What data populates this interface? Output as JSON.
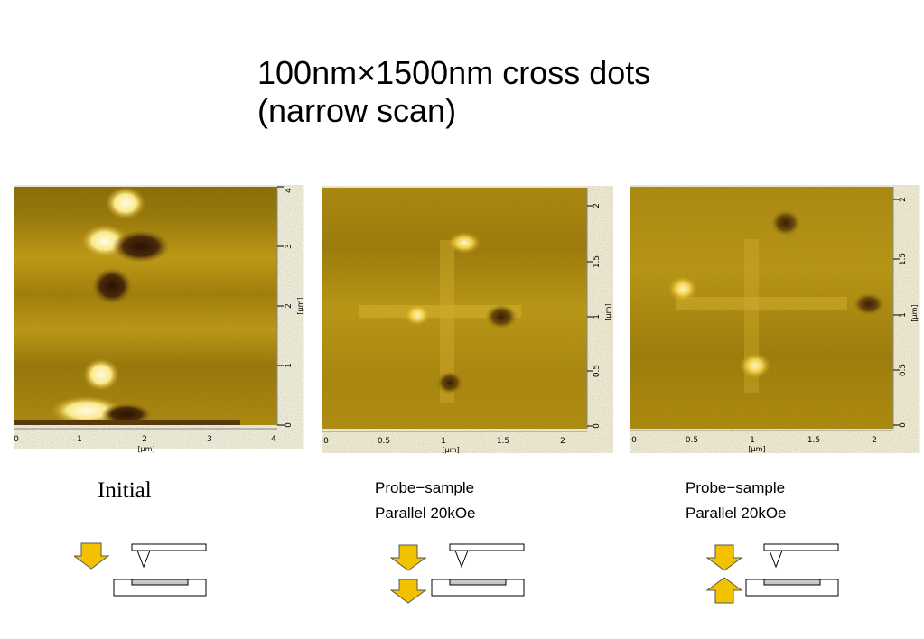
{
  "title": {
    "line1": "100nm×1500nm cross dots",
    "line2": "(narrow scan)"
  },
  "panels": [
    {
      "x_ticks": [
        "0",
        "1",
        "2",
        "3",
        "4"
      ],
      "y_ticks": [
        "0",
        "1",
        "2",
        "3",
        "4"
      ],
      "x_unit": "[μm]",
      "y_unit": "[μm]",
      "caption_lines": [
        "Initial"
      ],
      "arrows": "down-only"
    },
    {
      "x_ticks": [
        "0",
        "0.5",
        "1",
        "1.5",
        "2"
      ],
      "y_ticks": [
        "0",
        "0.5",
        "1",
        "1.5",
        "2"
      ],
      "x_unit": "[μm]",
      "y_unit": "[μm]",
      "caption_lines": [
        "Probe−sample",
        "Parallel 20kOe"
      ],
      "arrows": "down-down"
    },
    {
      "x_ticks": [
        "0",
        "0.5",
        "1",
        "1.5",
        "2"
      ],
      "y_ticks": [
        "0",
        "0.5",
        "1",
        "1.5",
        "2"
      ],
      "x_unit": "[μm]",
      "y_unit": "[μm]",
      "caption_lines": [
        "Probe−sample",
        "Parallel 20kOe"
      ],
      "arrows": "down-up"
    }
  ],
  "colors": {
    "afm_base": "#b08a12",
    "afm_bright": "#fff6c8",
    "afm_dark": "#3a1e05",
    "arrow_fill": "#f2c200",
    "substrate_film": "#c8c8c8"
  }
}
